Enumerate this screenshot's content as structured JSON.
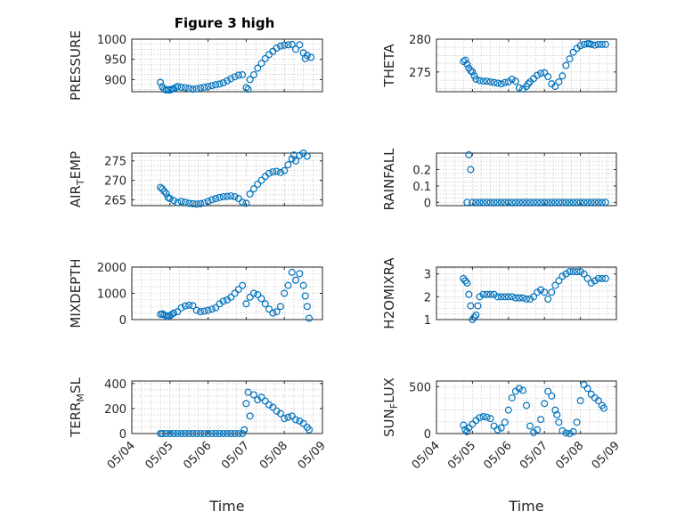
{
  "colors": {
    "marker": "#0072BD",
    "axis": "#262626",
    "background": "#ffffff"
  },
  "figure_title": "Figure 3 high",
  "chart_data": [
    {
      "type": "scatter",
      "title": "Figure 3 high",
      "ylabel": "PRESSURE",
      "ylabel_sub": null,
      "xlabel": "",
      "xlim": [
        0,
        5
      ],
      "ylim": [
        870,
        1000
      ],
      "yticks": [
        900,
        950,
        1000
      ],
      "yticklabels": [
        "900",
        "950",
        "1000"
      ],
      "xticklabels": [],
      "grid": true,
      "x": [
        0.75,
        0.8,
        0.85,
        0.9,
        0.95,
        1.0,
        1.05,
        1.1,
        1.15,
        1.2,
        1.3,
        1.4,
        1.5,
        1.6,
        1.7,
        1.8,
        1.9,
        2.0,
        2.1,
        2.2,
        2.3,
        2.4,
        2.5,
        2.6,
        2.7,
        2.8,
        2.9,
        3.0,
        3.05,
        3.1,
        3.2,
        3.3,
        3.4,
        3.5,
        3.6,
        3.7,
        3.8,
        3.9,
        4.0,
        4.1,
        4.2,
        4.3,
        4.4,
        4.5,
        4.55,
        4.6,
        4.7
      ],
      "y": [
        893,
        882,
        876,
        874,
        875,
        874,
        876,
        877,
        880,
        883,
        881,
        880,
        878,
        876,
        877,
        879,
        881,
        883,
        885,
        887,
        889,
        892,
        897,
        902,
        907,
        911,
        912,
        880,
        876,
        900,
        912,
        928,
        940,
        952,
        962,
        970,
        978,
        983,
        985,
        986,
        987,
        975,
        986,
        966,
        952,
        960,
        955
      ]
    },
    {
      "type": "scatter",
      "title": "",
      "ylabel": "THETA",
      "ylabel_sub": null,
      "xlabel": "",
      "xlim": [
        0,
        5
      ],
      "ylim": [
        272,
        280
      ],
      "yticks": [
        275,
        280
      ],
      "yticklabels": [
        "275",
        "280"
      ],
      "xticklabels": [],
      "grid": true,
      "x": [
        0.75,
        0.8,
        0.85,
        0.9,
        0.95,
        1.0,
        1.05,
        1.1,
        1.2,
        1.3,
        1.4,
        1.5,
        1.6,
        1.7,
        1.8,
        1.9,
        2.0,
        2.1,
        2.2,
        2.3,
        2.4,
        2.5,
        2.55,
        2.6,
        2.7,
        2.8,
        2.9,
        3.0,
        3.1,
        3.2,
        3.3,
        3.4,
        3.5,
        3.6,
        3.7,
        3.8,
        3.9,
        4.0,
        4.1,
        4.2,
        4.25,
        4.3,
        4.4,
        4.5,
        4.6,
        4.7
      ],
      "y": [
        276.6,
        276.8,
        276.2,
        275.6,
        275.2,
        275.0,
        274.4,
        273.9,
        273.7,
        273.6,
        273.6,
        273.5,
        273.4,
        273.3,
        273.2,
        273.4,
        273.5,
        273.9,
        273.6,
        272.6,
        272.4,
        272.8,
        273.2,
        273.5,
        274.0,
        274.5,
        274.8,
        274.9,
        274.3,
        273.2,
        272.8,
        273.5,
        274.4,
        276.0,
        277.0,
        278.0,
        278.6,
        279.0,
        279.2,
        279.3,
        279.3,
        279.2,
        279.1,
        279.2,
        279.2,
        279.2
      ]
    },
    {
      "type": "scatter",
      "title": "",
      "ylabel": "AIR",
      "ylabel_sub": "T",
      "ylabel_after": "EMP",
      "xlabel": "",
      "xlim": [
        0,
        5
      ],
      "ylim": [
        263.5,
        277
      ],
      "yticks": [
        265,
        270,
        275
      ],
      "yticklabels": [
        "265",
        "270",
        "275"
      ],
      "xticklabels": [],
      "grid": true,
      "x": [
        0.75,
        0.8,
        0.85,
        0.9,
        0.95,
        1.0,
        1.1,
        1.2,
        1.3,
        1.4,
        1.5,
        1.6,
        1.7,
        1.8,
        1.9,
        2.0,
        2.1,
        2.2,
        2.3,
        2.4,
        2.5,
        2.6,
        2.7,
        2.8,
        2.9,
        3.0,
        3.1,
        3.2,
        3.3,
        3.4,
        3.5,
        3.6,
        3.7,
        3.8,
        3.9,
        4.0,
        4.1,
        4.2,
        4.25,
        4.3,
        4.4,
        4.5,
        4.6
      ],
      "y": [
        268.2,
        267.8,
        267.2,
        266.6,
        265.6,
        265.3,
        264.8,
        264.3,
        264.6,
        264.4,
        264.1,
        264.0,
        263.9,
        264.0,
        264.2,
        264.6,
        265.0,
        265.3,
        265.6,
        265.8,
        265.9,
        266.0,
        265.8,
        265.3,
        264.4,
        264.1,
        266.5,
        267.8,
        269.0,
        270.0,
        271.0,
        271.8,
        272.2,
        272.3,
        272.0,
        272.5,
        274.0,
        275.5,
        276.5,
        275.0,
        276.4,
        277.0,
        276.2
      ]
    },
    {
      "type": "scatter",
      "title": "",
      "ylabel": "RAINFALL",
      "ylabel_sub": null,
      "xlabel": "",
      "xlim": [
        0,
        5
      ],
      "ylim": [
        -0.02,
        0.3
      ],
      "yticks": [
        0,
        0.1,
        0.2
      ],
      "yticklabels": [
        "0",
        "0.1",
        "0.2"
      ],
      "xticklabels": [],
      "grid": true,
      "x": [
        0.85,
        0.9,
        0.95,
        1.0,
        1.1,
        1.2,
        1.3,
        1.4,
        1.5,
        1.6,
        1.7,
        1.8,
        1.9,
        2.0,
        2.1,
        2.2,
        2.3,
        2.4,
        2.5,
        2.6,
        2.7,
        2.8,
        2.9,
        3.0,
        3.1,
        3.2,
        3.3,
        3.4,
        3.5,
        3.6,
        3.7,
        3.8,
        3.9,
        4.0,
        4.1,
        4.2,
        4.3,
        4.4,
        4.5,
        4.6,
        4.7
      ],
      "y": [
        0,
        0.29,
        0.2,
        0,
        0,
        0,
        0,
        0,
        0,
        0,
        0,
        0,
        0,
        0,
        0,
        0,
        0,
        0,
        0,
        0,
        0,
        0,
        0,
        0,
        0,
        0,
        0,
        0,
        0,
        0,
        0,
        0,
        0,
        0,
        0,
        0,
        0,
        0,
        0,
        0,
        0
      ]
    },
    {
      "type": "scatter",
      "title": "",
      "ylabel": "MIXDEPTH",
      "ylabel_sub": null,
      "xlabel": "",
      "xlim": [
        0,
        5
      ],
      "ylim": [
        0,
        2000
      ],
      "yticks": [
        0,
        1000,
        2000
      ],
      "yticklabels": [
        "0",
        "1000",
        "2000"
      ],
      "xticklabels": [],
      "grid": true,
      "x": [
        0.75,
        0.8,
        0.85,
        0.9,
        0.95,
        1.0,
        1.05,
        1.1,
        1.2,
        1.3,
        1.4,
        1.5,
        1.6,
        1.7,
        1.8,
        1.9,
        2.0,
        2.1,
        2.2,
        2.3,
        2.4,
        2.5,
        2.6,
        2.7,
        2.8,
        2.9,
        3.0,
        3.1,
        3.2,
        3.3,
        3.4,
        3.5,
        3.6,
        3.7,
        3.8,
        3.9,
        4.0,
        4.1,
        4.2,
        4.3,
        4.4,
        4.5,
        4.55,
        4.6,
        4.65
      ],
      "y": [
        200,
        220,
        180,
        150,
        100,
        150,
        200,
        250,
        300,
        450,
        520,
        550,
        530,
        350,
        300,
        320,
        350,
        400,
        450,
        600,
        700,
        750,
        850,
        1000,
        1150,
        1300,
        600,
        850,
        1000,
        950,
        800,
        600,
        400,
        250,
        300,
        500,
        1000,
        1300,
        1800,
        1500,
        1750,
        1300,
        900,
        500,
        50
      ]
    },
    {
      "type": "scatter",
      "title": "",
      "ylabel": "H2OMIXRA",
      "ylabel_sub": null,
      "xlabel": "",
      "xlim": [
        0,
        5
      ],
      "ylim": [
        1,
        3.3
      ],
      "yticks": [
        1,
        2,
        3
      ],
      "yticklabels": [
        "1",
        "2",
        "3"
      ],
      "xticklabels": [],
      "grid": true,
      "x": [
        0.75,
        0.8,
        0.85,
        0.9,
        0.95,
        1.0,
        1.05,
        1.1,
        1.15,
        1.2,
        1.3,
        1.4,
        1.5,
        1.6,
        1.7,
        1.8,
        1.9,
        2.0,
        2.1,
        2.2,
        2.3,
        2.4,
        2.5,
        2.6,
        2.7,
        2.8,
        2.9,
        3.0,
        3.1,
        3.2,
        3.3,
        3.4,
        3.5,
        3.6,
        3.7,
        3.8,
        3.9,
        4.0,
        4.1,
        4.2,
        4.3,
        4.4,
        4.5,
        4.6,
        4.7
      ],
      "y": [
        2.8,
        2.7,
        2.6,
        2.1,
        1.6,
        1.0,
        1.1,
        1.2,
        1.6,
        2.0,
        2.1,
        2.1,
        2.1,
        2.1,
        2.0,
        2.0,
        2.0,
        2.0,
        2.0,
        1.95,
        1.95,
        1.95,
        1.9,
        1.9,
        2.0,
        2.2,
        2.3,
        2.2,
        1.9,
        2.2,
        2.5,
        2.7,
        2.9,
        3.0,
        3.1,
        3.1,
        3.1,
        3.1,
        3.0,
        2.8,
        2.6,
        2.7,
        2.8,
        2.8,
        2.8
      ]
    },
    {
      "type": "scatter",
      "title": "",
      "ylabel": "TERR",
      "ylabel_sub": "M",
      "ylabel_after": "SL",
      "xlabel": "Time",
      "xlim": [
        0,
        5
      ],
      "ylim": [
        0,
        420
      ],
      "yticks": [
        0,
        200,
        400
      ],
      "yticklabels": [
        "0",
        "200",
        "400"
      ],
      "xticklabels": [
        "05/04",
        "05/05",
        "05/06",
        "05/07",
        "05/08",
        "05/09"
      ],
      "grid": true,
      "x": [
        0.75,
        0.8,
        0.9,
        1.0,
        1.1,
        1.2,
        1.3,
        1.4,
        1.5,
        1.6,
        1.7,
        1.8,
        1.9,
        2.0,
        2.1,
        2.2,
        2.3,
        2.4,
        2.5,
        2.6,
        2.7,
        2.8,
        2.9,
        2.95,
        3.0,
        3.05,
        3.1,
        3.2,
        3.3,
        3.4,
        3.5,
        3.6,
        3.7,
        3.8,
        3.9,
        4.0,
        4.1,
        4.2,
        4.3,
        4.4,
        4.5,
        4.6,
        4.65
      ],
      "y": [
        0,
        0,
        0,
        0,
        0,
        0,
        0,
        0,
        0,
        0,
        0,
        0,
        0,
        0,
        0,
        0,
        0,
        0,
        0,
        0,
        0,
        0,
        0,
        30,
        240,
        330,
        140,
        310,
        270,
        290,
        260,
        230,
        210,
        180,
        160,
        120,
        130,
        140,
        110,
        100,
        80,
        50,
        30
      ]
    },
    {
      "type": "scatter",
      "title": "",
      "ylabel": "SUN",
      "ylabel_sub": "F",
      "ylabel_after": "LUX",
      "xlabel": "Time",
      "xlim": [
        0,
        5
      ],
      "ylim": [
        0,
        560
      ],
      "yticks": [
        0,
        500
      ],
      "yticklabels": [
        "0",
        "500"
      ],
      "xticklabels": [
        "05/04",
        "05/05",
        "05/06",
        "05/07",
        "05/08",
        "05/09"
      ],
      "grid": true,
      "x": [
        0.75,
        0.8,
        0.85,
        0.9,
        1.0,
        1.1,
        1.2,
        1.3,
        1.4,
        1.5,
        1.6,
        1.7,
        1.8,
        1.9,
        2.0,
        2.1,
        2.2,
        2.3,
        2.4,
        2.5,
        2.6,
        2.7,
        2.8,
        2.9,
        3.0,
        3.1,
        3.2,
        3.3,
        3.35,
        3.4,
        3.5,
        3.6,
        3.7,
        3.8,
        3.9,
        4.0,
        4.1,
        4.2,
        4.3,
        4.4,
        4.5,
        4.6,
        4.65
      ],
      "y": [
        90,
        40,
        20,
        60,
        100,
        140,
        170,
        180,
        175,
        160,
        80,
        40,
        60,
        120,
        250,
        380,
        450,
        480,
        460,
        300,
        80,
        10,
        40,
        150,
        320,
        450,
        400,
        250,
        200,
        120,
        30,
        5,
        0,
        20,
        120,
        350,
        520,
        480,
        420,
        380,
        350,
        300,
        270
      ]
    }
  ]
}
